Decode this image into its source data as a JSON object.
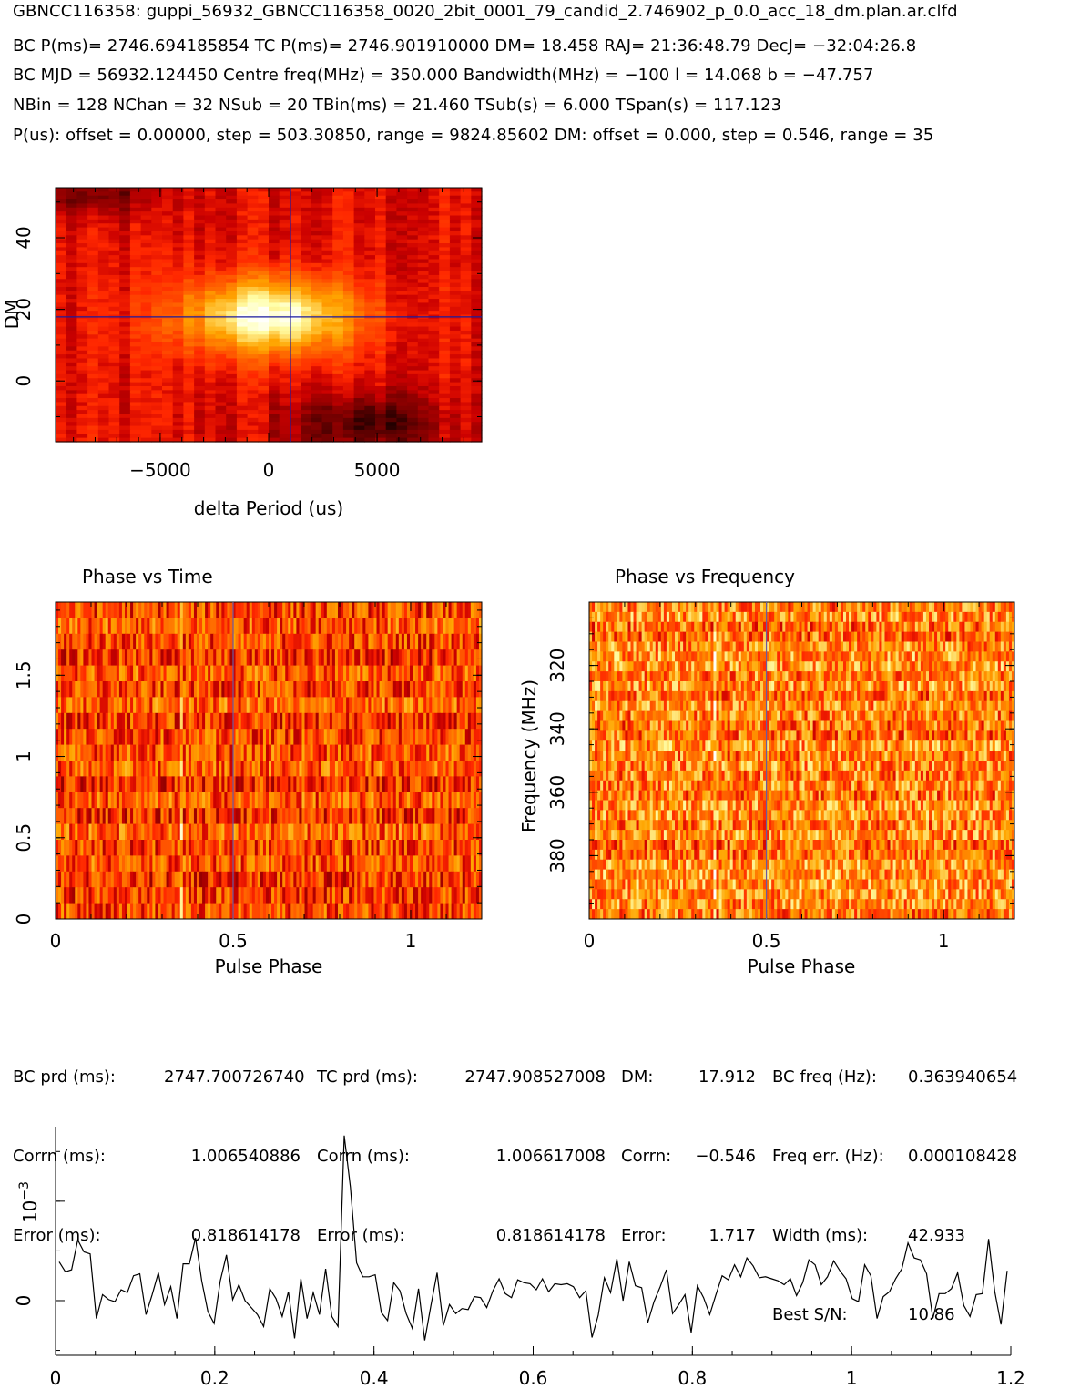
{
  "header": {
    "filename": "GBNCC116358: guppi_56932_GBNCC116358_0020_2bit_0001_79_candid_2.746902_p_0.0_acc_18_dm.plan.ar.clfd",
    "line1": "BC P(ms)= 2746.694185854 TC P(ms)= 2746.901910000 DM= 18.458 RAJ= 21:36:48.79 DecJ= −32:04:26.8",
    "line2": "BC MJD = 56932.124450 Centre freq(MHz) = 350.000 Bandwidth(MHz) = −100 l = 14.068 b = −47.757",
    "line3": "NBin = 128 NChan = 32 NSub = 20 TBin(ms) = 21.460 TSub(s) = 6.000 TSpan(s) = 117.123",
    "line4": "P(us): offset = 0.00000, step = 503.30850, range = 9824.85602 DM: offset = 0.000, step = 0.546, range = 35"
  },
  "stats": {
    "c1": [
      "BC prd (ms):",
      "Corrn (ms):",
      "Error (ms):"
    ],
    "c2": [
      "2747.700726740",
      "1.006540886",
      "0.818614178"
    ],
    "c3": [
      "TC prd (ms):",
      "Corrn (ms):",
      "Error (ms):"
    ],
    "c4": [
      "2747.908527008",
      "1.006617008",
      "0.818614178"
    ],
    "c5": [
      "DM:",
      "Corrn:",
      "Error:"
    ],
    "c6": [
      "17.912",
      "−0.546",
      "1.717"
    ],
    "c7": [
      "BC freq (Hz):",
      "Freq err. (Hz):",
      "Width (ms):",
      "Best S/N:"
    ],
    "c8": [
      "0.363940654",
      "0.000108428",
      "42.933",
      "10.86"
    ]
  },
  "colors": {
    "cursor": "#1a1aa0",
    "line": "#000000",
    "frame": "#000000"
  },
  "chart_data": [
    {
      "type": "heatmap",
      "id": "dm_period",
      "title": "",
      "xlabel": "delta Period (us)",
      "ylabel": "DM",
      "xlim": [
        -9825,
        9825
      ],
      "ylim": [
        -17,
        54
      ],
      "xticks": [
        "−5000",
        "0",
        "5000"
      ],
      "xtick_values": [
        -5000,
        0,
        5000
      ],
      "yticks": [
        "0",
        "20",
        "40"
      ],
      "ytick_values": [
        0,
        20,
        40
      ],
      "peak": {
        "x": 0,
        "y": 18
      },
      "cursor": {
        "x": 1007,
        "y": 17.9
      },
      "colormap": "heat"
    },
    {
      "type": "heatmap",
      "id": "phase_time",
      "title": "Phase vs Time",
      "xlabel": "Pulse Phase",
      "ylabel": "",
      "xlim": [
        0,
        1.2
      ],
      "ylim": [
        0,
        1.95
      ],
      "xticks": [
        "0",
        "0.5",
        "1"
      ],
      "xtick_values": [
        0,
        0.5,
        1
      ],
      "yticks": [
        "0",
        "0.5",
        "1",
        "1.5"
      ],
      "ytick_values": [
        0,
        0.5,
        1,
        1.5
      ],
      "rows": 20,
      "cols": 154,
      "cursor": {
        "x": 0.5
      },
      "colormap": "heat"
    },
    {
      "type": "heatmap",
      "id": "phase_freq",
      "title": "Phase vs Frequency",
      "xlabel": "Pulse Phase",
      "ylabel": "Frequency (MHz)",
      "xlim": [
        0,
        1.2
      ],
      "ylim": [
        400,
        300
      ],
      "xticks": [
        "0",
        "0.5",
        "1"
      ],
      "xtick_values": [
        0,
        0.5,
        1
      ],
      "yticks": [
        "320",
        "340",
        "360",
        "380"
      ],
      "ytick_values": [
        320,
        340,
        360,
        380
      ],
      "rows": 32,
      "cols": 154,
      "cursor": {
        "x": 0.5
      },
      "colormap": "heat"
    },
    {
      "type": "line",
      "id": "profile",
      "title": "",
      "xlabel": "",
      "ylabel": "",
      "y_exponent_label": "10",
      "y_exponent_sup": "−3",
      "xlim": [
        0,
        1.2
      ],
      "ylim": [
        -0.0055,
        0.0175
      ],
      "xticks": [
        "0",
        "0.2",
        "0.4",
        "0.6",
        "0.8",
        "1",
        "1.2"
      ],
      "xtick_values": [
        0,
        0.2,
        0.4,
        0.6,
        0.8,
        1.0,
        1.2
      ],
      "yticks": [
        "0"
      ],
      "ytick_values": [
        0
      ],
      "y_exp_tick_value": 0.01,
      "x": "bins 0..153 over phase 0..1.2",
      "y": [
        3.9,
        2.9,
        3.1,
        6.1,
        4.9,
        4.7,
        -1.8,
        0.6,
        0.1,
        -0.1,
        1.1,
        0.8,
        2.5,
        2.7,
        -1.4,
        0.6,
        2.8,
        -0.4,
        1.4,
        -1.8,
        3.7,
        3.7,
        6.3,
        2.0,
        -1.1,
        -2.3,
        2.0,
        4.6,
        0.1,
        1.6,
        0.0,
        -0.7,
        -1.4,
        -2.6,
        1.2,
        0.2,
        -1.6,
        0.9,
        -3.8,
        2.2,
        -1.8,
        0.8,
        -1.4,
        3.2,
        -1.6,
        -2.6,
        16.6,
        11.4,
        3.8,
        2.4,
        2.4,
        2.6,
        -1.2,
        -2.0,
        1.8,
        1.0,
        -1.3,
        -2.8,
        1.2,
        -4.0,
        -0.5,
        2.8,
        -2.5,
        -0.4,
        -1.3,
        -0.8,
        -0.9,
        0.4,
        0.3,
        -0.7,
        1.0,
        2.2,
        0.7,
        0.3,
        2.1,
        1.8,
        1.7,
        1.1,
        2.2,
        0.9,
        1.7,
        1.6,
        1.7,
        1.4,
        0.3,
        1.0,
        -3.7,
        -1.5,
        2.3,
        0.8,
        4.2,
        0.0,
        3.9,
        1.5,
        1.3,
        -2.2,
        -0.1,
        1.4,
        3.1,
        -1.3,
        -0.4,
        0.6,
        -3.2,
        1.5,
        0.3,
        -1.4,
        0.6,
        2.5,
        2.1,
        3.6,
        2.4,
        4.3,
        3.5,
        2.3,
        2.4,
        2.2,
        2.0,
        1.6,
        2.2,
        0.5,
        1.8,
        4.1,
        3.6,
        1.6,
        2.4,
        4.0,
        3.0,
        2.2,
        0.2,
        -0.1,
        3.6,
        2.5,
        -1.8,
        0.4,
        0.9,
        2.2,
        3.2,
        5.8,
        4.3,
        4.1,
        2.7,
        -1.8,
        0.7,
        0.7,
        1.2,
        2.8,
        -0.5,
        -1.6,
        0.6,
        0.7,
        6.2,
        0.9,
        -2.4,
        3.0
      ]
    }
  ]
}
